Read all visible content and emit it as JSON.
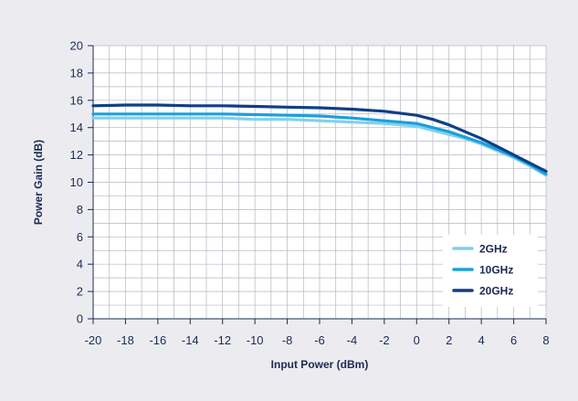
{
  "chart_data": {
    "type": "line",
    "title": "",
    "xlabel": "Input Power (dBm)",
    "ylabel": "Power Gain (dB)",
    "xlim": [
      -20,
      8
    ],
    "ylim": [
      0,
      20
    ],
    "xticks": [
      -20,
      -18,
      -16,
      -14,
      -12,
      -10,
      -8,
      -6,
      -4,
      -2,
      0,
      2,
      4,
      6,
      8
    ],
    "yticks": [
      0,
      2,
      4,
      6,
      8,
      10,
      12,
      14,
      16,
      18,
      20
    ],
    "grid": true,
    "legend_position": "bottom-right",
    "series": [
      {
        "name": "2GHz",
        "color": "#7fd0f0",
        "x": [
          -20,
          -18,
          -16,
          -14,
          -12,
          -10,
          -8,
          -6,
          -4,
          -2,
          0,
          1,
          2,
          3,
          4,
          5,
          6,
          7,
          8
        ],
        "y": [
          14.7,
          14.7,
          14.7,
          14.7,
          14.7,
          14.6,
          14.6,
          14.5,
          14.4,
          14.3,
          14.1,
          13.8,
          13.5,
          13.2,
          12.8,
          12.3,
          11.8,
          11.2,
          10.5
        ]
      },
      {
        "name": "10GHz",
        "color": "#1aa0dc",
        "x": [
          -20,
          -18,
          -16,
          -14,
          -12,
          -10,
          -8,
          -6,
          -4,
          -2,
          0,
          1,
          2,
          3,
          4,
          5,
          6,
          7,
          8
        ],
        "y": [
          15.0,
          15.0,
          15.0,
          15.0,
          15.0,
          14.95,
          14.9,
          14.85,
          14.7,
          14.5,
          14.3,
          14.0,
          13.7,
          13.3,
          12.9,
          12.4,
          11.9,
          11.3,
          10.6
        ]
      },
      {
        "name": "20GHz",
        "color": "#0f3f86",
        "x": [
          -20,
          -18,
          -16,
          -14,
          -12,
          -10,
          -8,
          -6,
          -4,
          -2,
          0,
          1,
          2,
          3,
          4,
          5,
          6,
          7,
          8
        ],
        "y": [
          15.6,
          15.65,
          15.65,
          15.6,
          15.6,
          15.55,
          15.5,
          15.45,
          15.35,
          15.2,
          14.9,
          14.6,
          14.2,
          13.7,
          13.2,
          12.6,
          12.0,
          11.4,
          10.8
        ]
      }
    ]
  }
}
